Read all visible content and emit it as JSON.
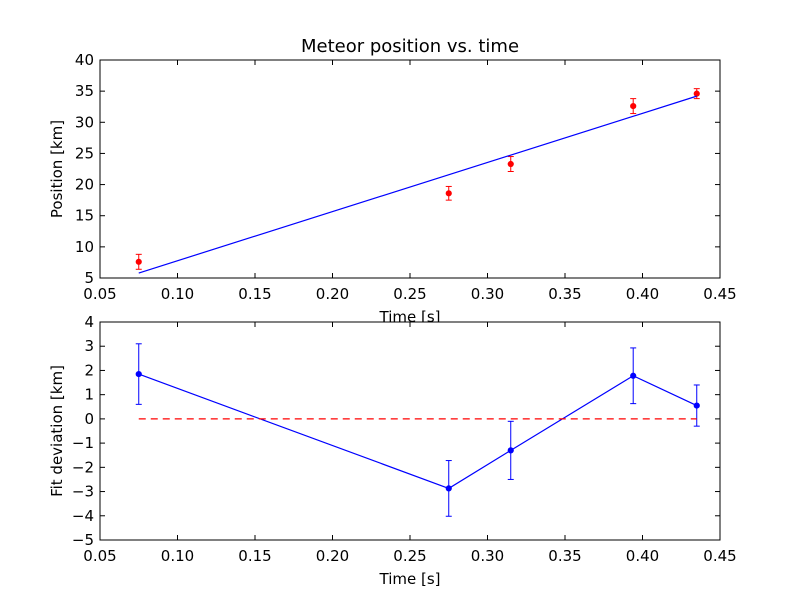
{
  "chart_data": [
    {
      "type": "scatter",
      "title": "Meteor position vs. time",
      "xlabel": "Time [s]",
      "ylabel": "Position [km]",
      "xlim": [
        0.05,
        0.45
      ],
      "ylim": [
        5,
        40
      ],
      "x_ticks": [
        "0.05",
        "0.10",
        "0.15",
        "0.20",
        "0.25",
        "0.30",
        "0.35",
        "0.40",
        "0.45"
      ],
      "y_ticks": [
        "5",
        "10",
        "15",
        "20",
        "25",
        "30",
        "35",
        "40"
      ],
      "grid": false,
      "series": [
        {
          "style": "errorbar-points",
          "color": "#ff0000",
          "x": [
            0.075,
            0.275,
            0.315,
            0.394,
            0.435
          ],
          "y": [
            7.6,
            18.6,
            23.3,
            32.6,
            34.6
          ],
          "yerr": [
            1.2,
            1.1,
            1.2,
            1.2,
            0.8
          ]
        },
        {
          "style": "line",
          "color": "#0000ff",
          "x": [
            0.075,
            0.435
          ],
          "y": [
            5.8,
            34.2
          ]
        }
      ]
    },
    {
      "type": "line",
      "title": "",
      "xlabel": "Time [s]",
      "ylabel": "Fit deviation [km]",
      "xlim": [
        0.05,
        0.45
      ],
      "ylim": [
        -5,
        4
      ],
      "x_ticks": [
        "0.05",
        "0.10",
        "0.15",
        "0.20",
        "0.25",
        "0.30",
        "0.35",
        "0.40",
        "0.45"
      ],
      "y_ticks": [
        "−5",
        "−4",
        "−3",
        "−2",
        "−1",
        "0",
        "1",
        "2",
        "3",
        "4"
      ],
      "grid": false,
      "series": [
        {
          "style": "line-errorbar",
          "color": "#0000ff",
          "x": [
            0.075,
            0.275,
            0.315,
            0.394,
            0.435
          ],
          "y": [
            1.85,
            -2.87,
            -1.3,
            1.78,
            0.55
          ],
          "yerr": [
            1.25,
            1.15,
            1.2,
            1.15,
            0.85
          ]
        },
        {
          "style": "dashed-reference",
          "color": "#ff0000",
          "x": [
            0.075,
            0.435
          ],
          "y": [
            0,
            0
          ]
        }
      ]
    }
  ]
}
